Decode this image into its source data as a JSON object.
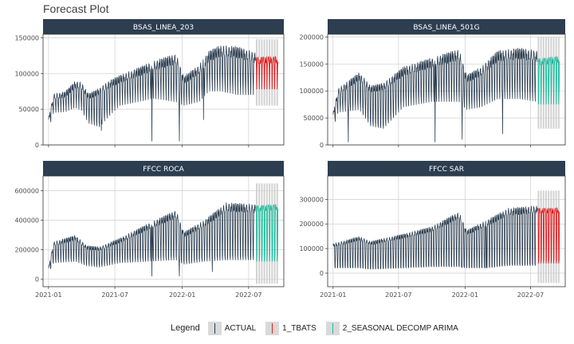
{
  "title": "Forecast Plot",
  "legend": {
    "title": "Legend",
    "items": [
      {
        "label": "ACTUAL",
        "color": "#2c3e50"
      },
      {
        "label": "1_TBATS",
        "color": "#e31a1c"
      },
      {
        "label": "2_SEASONAL DECOMP ARIMA",
        "color": "#18bc9c"
      }
    ]
  },
  "colors": {
    "strip": "#2c3e50",
    "strip_text": "#ffffff",
    "grid": "#cfcfcf",
    "ci_band": "#d3d3d3"
  },
  "chart_data": {
    "type": "line",
    "facet_layout": "2x2",
    "x_axis": {
      "type": "date",
      "range": [
        "2021-01-01",
        "2022-09-20"
      ],
      "ticks": [
        "2021-01",
        "2021-07",
        "2022-01",
        "2022-07"
      ]
    },
    "grid": true,
    "legend_position": "bottom",
    "panels": [
      {
        "label": "BSAS_LINEA_203",
        "ylim": [
          0,
          155000
        ],
        "yticks": [
          0,
          50000,
          100000,
          150000
        ],
        "forecast_series": "1_TBATS",
        "forecast_start": "2022-07-20",
        "actual_weekly": [
          {
            "date": "2021-01-01",
            "high": 38000,
            "low": 22000
          },
          {
            "date": "2021-01-15",
            "high": 72000,
            "low": 45000
          },
          {
            "date": "2021-02-15",
            "high": 75000,
            "low": 46000
          },
          {
            "date": "2021-03-15",
            "high": 90000,
            "low": 52000
          },
          {
            "date": "2021-04-01",
            "high": 88000,
            "low": 48000
          },
          {
            "date": "2021-04-20",
            "high": 72000,
            "low": 30000
          },
          {
            "date": "2021-05-20",
            "high": 80000,
            "low": 25000
          },
          {
            "date": "2021-06-15",
            "high": 90000,
            "low": 40000
          },
          {
            "date": "2021-07-15",
            "high": 98000,
            "low": 55000
          },
          {
            "date": "2021-09-01",
            "high": 108000,
            "low": 60000
          },
          {
            "date": "2021-10-15",
            "high": 118000,
            "low": 65000
          },
          {
            "date": "2021-12-15",
            "high": 128000,
            "low": 60000
          },
          {
            "date": "2022-01-05",
            "high": 96000,
            "low": 55000
          },
          {
            "date": "2022-02-15",
            "high": 112000,
            "low": 60000
          },
          {
            "date": "2022-03-15",
            "high": 132000,
            "low": 75000
          },
          {
            "date": "2022-04-15",
            "high": 140000,
            "low": 75000
          },
          {
            "date": "2022-06-01",
            "high": 138000,
            "low": 70000
          },
          {
            "date": "2022-07-18",
            "high": 130000,
            "low": 70000
          }
        ],
        "dips": [
          {
            "date": "2021-05-25",
            "value": 20000
          },
          {
            "date": "2021-10-10",
            "value": 5000
          },
          {
            "date": "2021-12-24",
            "value": 5000
          },
          {
            "date": "2022-02-28",
            "value": 35000
          }
        ],
        "forecast_weekly": [
          {
            "date": "2022-07-20",
            "high": 123000,
            "low": 78000
          },
          {
            "date": "2022-08-15",
            "high": 124000,
            "low": 78000
          },
          {
            "date": "2022-09-20",
            "high": 124000,
            "low": 78000
          }
        ],
        "ci": {
          "upper": 148000,
          "lower": 55000
        }
      },
      {
        "label": "BSAS_LINEA_501G",
        "ylim": [
          0,
          205000
        ],
        "yticks": [
          0,
          50000,
          100000,
          150000,
          200000
        ],
        "forecast_series": "2_SEASONAL DECOMP ARIMA",
        "forecast_start": "2022-07-20",
        "actual_weekly": [
          {
            "date": "2021-01-01",
            "high": 60000,
            "low": 30000
          },
          {
            "date": "2021-01-15",
            "high": 105000,
            "low": 60000
          },
          {
            "date": "2021-03-15",
            "high": 135000,
            "low": 65000
          },
          {
            "date": "2021-04-15",
            "high": 110000,
            "low": 35000
          },
          {
            "date": "2021-05-20",
            "high": 115000,
            "low": 30000
          },
          {
            "date": "2021-07-15",
            "high": 145000,
            "low": 70000
          },
          {
            "date": "2021-10-01",
            "high": 162000,
            "low": 80000
          },
          {
            "date": "2021-12-15",
            "high": 178000,
            "low": 80000
          },
          {
            "date": "2022-01-05",
            "high": 130000,
            "low": 65000
          },
          {
            "date": "2022-02-15",
            "high": 145000,
            "low": 70000
          },
          {
            "date": "2022-04-01",
            "high": 175000,
            "low": 85000
          },
          {
            "date": "2022-06-01",
            "high": 180000,
            "low": 85000
          },
          {
            "date": "2022-07-18",
            "high": 175000,
            "low": 80000
          }
        ],
        "dips": [
          {
            "date": "2021-02-12",
            "value": 5000
          },
          {
            "date": "2021-10-10",
            "value": 5000
          },
          {
            "date": "2021-12-24",
            "value": 10000
          },
          {
            "date": "2022-04-15",
            "value": 20000
          }
        ],
        "forecast_weekly": [
          {
            "date": "2022-07-20",
            "high": 160000,
            "low": 75000
          },
          {
            "date": "2022-09-20",
            "high": 165000,
            "low": 75000
          }
        ],
        "ci": {
          "upper": 200000,
          "lower": 30000
        }
      },
      {
        "label": "FFCC ROCA",
        "ylim": [
          -50000,
          700000
        ],
        "yticks": [
          0,
          200000,
          400000,
          600000
        ],
        "forecast_series": "2_SEASONAL DECOMP ARIMA",
        "forecast_start": "2022-07-20",
        "actual_weekly": [
          {
            "date": "2021-01-01",
            "high": 80000,
            "low": 40000
          },
          {
            "date": "2021-01-15",
            "high": 255000,
            "low": 110000
          },
          {
            "date": "2021-03-15",
            "high": 300000,
            "low": 120000
          },
          {
            "date": "2021-04-15",
            "high": 230000,
            "low": 90000
          },
          {
            "date": "2021-05-20",
            "high": 220000,
            "low": 80000
          },
          {
            "date": "2021-07-15",
            "high": 280000,
            "low": 110000
          },
          {
            "date": "2021-10-01",
            "high": 380000,
            "low": 120000
          },
          {
            "date": "2021-12-15",
            "high": 470000,
            "low": 130000
          },
          {
            "date": "2022-01-05",
            "high": 320000,
            "low": 100000
          },
          {
            "date": "2022-03-01",
            "high": 400000,
            "low": 120000
          },
          {
            "date": "2022-05-01",
            "high": 520000,
            "low": 130000
          },
          {
            "date": "2022-07-18",
            "high": 510000,
            "low": 130000
          }
        ],
        "dips": [
          {
            "date": "2021-10-10",
            "value": 20000
          },
          {
            "date": "2021-12-24",
            "value": 20000
          },
          {
            "date": "2022-03-24",
            "value": 50000
          }
        ],
        "forecast_weekly": [
          {
            "date": "2022-07-20",
            "high": 500000,
            "low": 120000
          },
          {
            "date": "2022-09-20",
            "high": 510000,
            "low": 120000
          }
        ],
        "ci": {
          "upper": 650000,
          "lower": -30000
        }
      },
      {
        "label": "FFCC SAR",
        "ylim": [
          -55000,
          395000
        ],
        "yticks": [
          0,
          100000,
          200000,
          300000
        ],
        "forecast_series": "1_TBATS",
        "forecast_start": "2022-07-20",
        "actual_weekly": [
          {
            "date": "2021-01-01",
            "high": 120000,
            "low": 20000
          },
          {
            "date": "2021-03-15",
            "high": 150000,
            "low": 20000
          },
          {
            "date": "2021-04-15",
            "high": 130000,
            "low": 15000
          },
          {
            "date": "2021-07-15",
            "high": 160000,
            "low": 20000
          },
          {
            "date": "2021-10-01",
            "high": 190000,
            "low": 25000
          },
          {
            "date": "2021-12-15",
            "high": 250000,
            "low": 25000
          },
          {
            "date": "2022-01-05",
            "high": 175000,
            "low": 20000
          },
          {
            "date": "2022-03-01",
            "high": 215000,
            "low": 20000
          },
          {
            "date": "2022-05-01",
            "high": 265000,
            "low": 30000
          },
          {
            "date": "2022-07-18",
            "high": 275000,
            "low": 30000
          }
        ],
        "dips": [
          {
            "date": "2021-12-24",
            "value": 25000
          },
          {
            "date": "2022-02-28",
            "value": 20000
          }
        ],
        "forecast_weekly": [
          {
            "date": "2022-07-20",
            "high": 265000,
            "low": 40000
          },
          {
            "date": "2022-09-20",
            "high": 265000,
            "low": 40000
          }
        ],
        "ci": {
          "upper": 335000,
          "lower": -40000
        }
      }
    ]
  }
}
